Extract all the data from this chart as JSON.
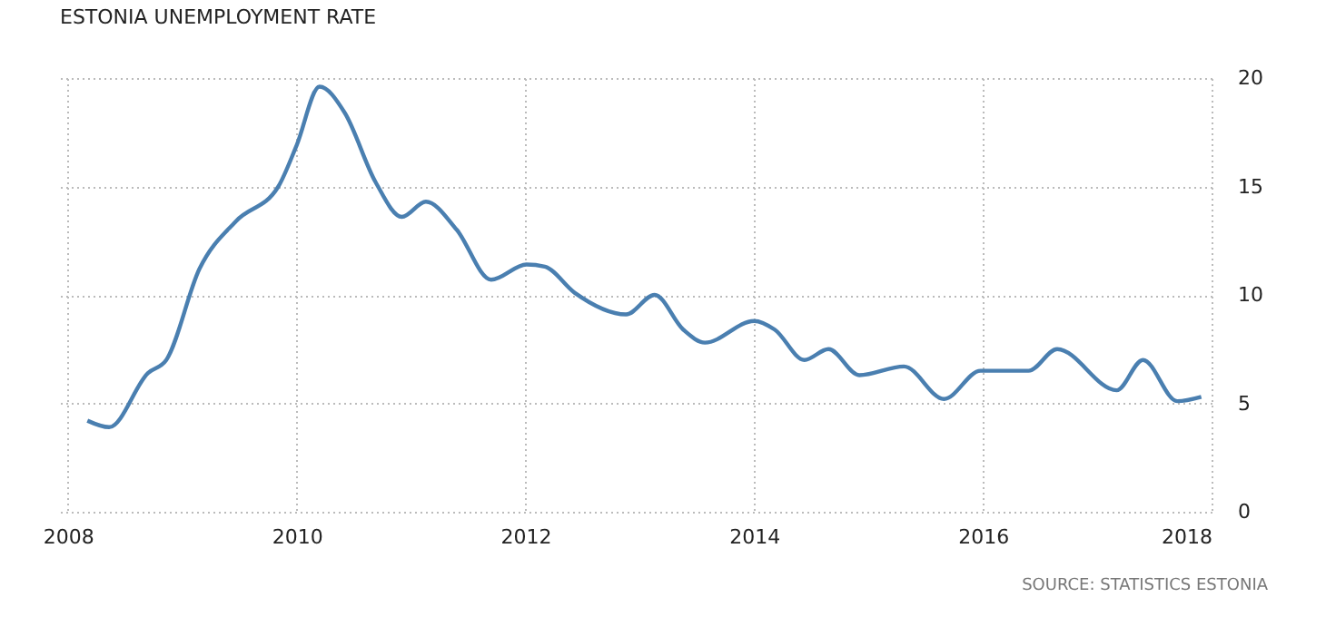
{
  "chart_data": {
    "type": "line",
    "title": "ESTONIA UNEMPLOYMENT RATE",
    "annotations": [
      "SOURCE: STATISTICS ESTONIA"
    ],
    "x": [
      2008.17,
      2008.36,
      2008.7,
      2008.86,
      2009.15,
      2009.47,
      2009.84,
      2010.0,
      2010.2,
      2010.42,
      2010.69,
      2010.92,
      2011.13,
      2011.4,
      2011.7,
      2012.01,
      2012.17,
      2012.43,
      2012.88,
      2013.13,
      2013.38,
      2013.57,
      2014.0,
      2014.18,
      2014.44,
      2014.65,
      2014.92,
      2015.31,
      2015.66,
      2015.98,
      2016.4,
      2016.65,
      2017.17,
      2017.4,
      2017.7,
      2017.91
    ],
    "series": [
      {
        "color": "#4a7fb0",
        "values": [
          4.2,
          3.9,
          6.4,
          7.0,
          11.2,
          13.4,
          15.0,
          16.9,
          19.6,
          18.4,
          15.2,
          13.6,
          14.3,
          13.0,
          10.7,
          11.4,
          11.3,
          10.1,
          9.1,
          10.0,
          8.4,
          7.8,
          8.8,
          8.4,
          7.0,
          7.5,
          6.3,
          6.7,
          5.2,
          6.5,
          6.5,
          7.5,
          5.6,
          7.0,
          5.1,
          5.3
        ]
      }
    ],
    "xlim": [
      2007.93,
      2018
    ],
    "xticks": [
      2008,
      2010,
      2012,
      2014,
      2016,
      2018
    ],
    "ylim": [
      0,
      20
    ],
    "yticks": [
      0,
      5,
      10,
      15,
      20
    ],
    "grid": true,
    "marker": "none",
    "line_style": "solid"
  }
}
